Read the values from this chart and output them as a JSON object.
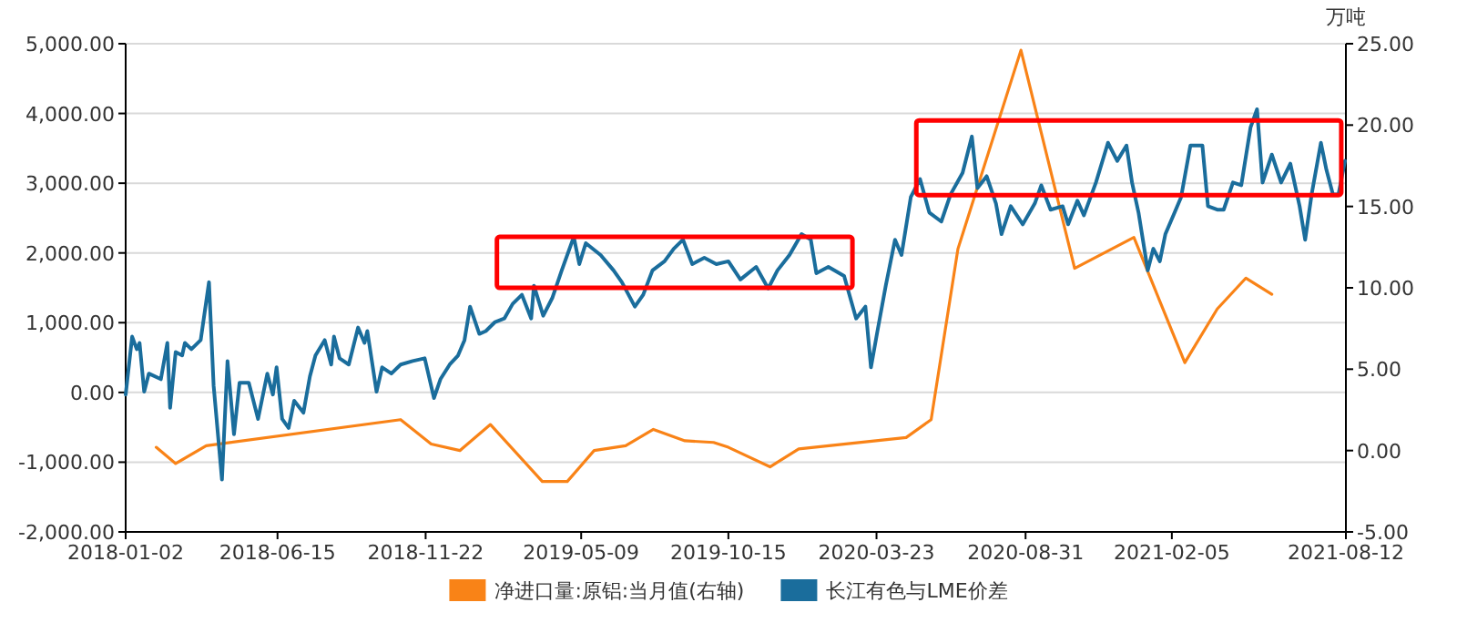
{
  "chart_data": {
    "type": "line",
    "y2label": "万吨",
    "grid": "y",
    "legend": "bottom",
    "xlim": [
      "2018-01-02",
      "2021-08-12"
    ],
    "xticks": [
      "2018-01-02",
      "2018-06-15",
      "2018-11-22",
      "2019-05-09",
      "2019-10-15",
      "2020-03-23",
      "2020-08-31",
      "2021-02-05",
      "2021-08-12"
    ],
    "ylim": [
      -2000,
      5000
    ],
    "yticks": [
      {
        "value": -2000,
        "label": "-2,000.00"
      },
      {
        "value": -1000,
        "label": "-1,000.00"
      },
      {
        "value": 0,
        "label": "0.00"
      },
      {
        "value": 1000,
        "label": "1,000.00"
      },
      {
        "value": 2000,
        "label": "2,000.00"
      },
      {
        "value": 3000,
        "label": "3,000.00"
      },
      {
        "value": 4000,
        "label": "4,000.00"
      },
      {
        "value": 5000,
        "label": "5,000.00"
      }
    ],
    "y2lim": [
      -5,
      25
    ],
    "y2ticks": [
      {
        "value": -5,
        "label": "-5.00"
      },
      {
        "value": 0,
        "label": "0.00"
      },
      {
        "value": 5,
        "label": "5.00"
      },
      {
        "value": 10,
        "label": "10.00"
      },
      {
        "value": 15,
        "label": "15.00"
      },
      {
        "value": 20,
        "label": "20.00"
      },
      {
        "value": 25,
        "label": "25.00"
      }
    ],
    "series": [
      {
        "name": "净进口量:原铝:当月值(右轴)",
        "color": "#f98317",
        "axis": "y2",
        "x": [
          "2018-02-04",
          "2018-02-25",
          "2018-03-30",
          "2018-10-26",
          "2018-11-28",
          "2018-12-29",
          "2019-01-31",
          "2019-03-28",
          "2019-04-24",
          "2019-05-23",
          "2019-06-26",
          "2019-07-26",
          "2019-08-29",
          "2019-09-29",
          "2019-10-15",
          "2019-11-29",
          "2019-12-30",
          "2020-04-24",
          "2020-05-21",
          "2020-06-19",
          "2020-08-26",
          "2020-10-23",
          "2020-12-26",
          "2021-02-19",
          "2021-03-26",
          "2021-04-26",
          "2021-05-24"
        ],
        "values": [
          0.2,
          -0.8,
          0.3,
          1.9,
          0.4,
          0.0,
          1.6,
          -1.9,
          -1.9,
          0.0,
          0.3,
          1.3,
          0.6,
          0.5,
          0.2,
          -1.0,
          0.1,
          0.8,
          1.9,
          12.4,
          24.6,
          11.2,
          13.1,
          5.4,
          8.7,
          10.6,
          9.6
        ]
      },
      {
        "name": "长江有色与LME价差",
        "color": "#1a6d9c",
        "x": [
          "2018-01-02",
          "2018-01-09",
          "2018-01-14",
          "2018-01-17",
          "2018-01-22",
          "2018-01-27",
          "2018-02-09",
          "2018-02-16",
          "2018-02-19",
          "2018-02-25",
          "2018-03-04",
          "2018-03-07",
          "2018-03-14",
          "2018-03-24",
          "2018-04-02",
          "2018-04-07",
          "2018-04-16",
          "2018-04-22",
          "2018-04-29",
          "2018-05-05",
          "2018-05-15",
          "2018-05-25",
          "2018-06-04",
          "2018-06-10",
          "2018-06-14",
          "2018-06-20",
          "2018-06-27",
          "2018-07-03",
          "2018-07-13",
          "2018-07-20",
          "2018-07-26",
          "2018-08-05",
          "2018-08-12",
          "2018-08-15",
          "2018-08-21",
          "2018-08-31",
          "2018-09-10",
          "2018-09-17",
          "2018-09-20",
          "2018-09-30",
          "2018-10-06",
          "2018-10-16",
          "2018-10-26",
          "2018-11-08",
          "2018-11-21",
          "2018-12-01",
          "2018-12-08",
          "2018-12-18",
          "2018-12-27",
          "2019-01-03",
          "2019-01-09",
          "2019-01-19",
          "2019-01-26",
          "2019-02-05",
          "2019-02-15",
          "2019-02-24",
          "2019-03-06",
          "2019-03-16",
          "2019-03-19",
          "2019-03-29",
          "2019-04-08",
          "2019-04-18",
          "2019-05-01",
          "2019-05-07",
          "2019-05-14",
          "2019-05-30",
          "2019-06-13",
          "2019-06-22",
          "2019-07-06",
          "2019-07-15",
          "2019-07-25",
          "2019-08-07",
          "2019-08-17",
          "2019-08-27",
          "2019-09-06",
          "2019-09-19",
          "2019-10-02",
          "2019-10-15",
          "2019-10-28",
          "2019-11-14",
          "2019-11-27",
          "2019-12-07",
          "2019-12-20",
          "2020-01-02",
          "2020-01-12",
          "2020-01-18",
          "2020-01-31",
          "2020-02-17",
          "2020-03-01",
          "2020-03-11",
          "2020-03-17",
          "2020-03-24",
          "2020-04-02",
          "2020-04-12",
          "2020-04-19",
          "2020-04-29",
          "2020-05-09",
          "2020-05-19",
          "2020-06-01",
          "2020-06-11",
          "2020-06-24",
          "2020-07-04",
          "2020-07-10",
          "2020-07-20",
          "2020-07-30",
          "2020-08-05",
          "2020-08-15",
          "2020-08-28",
          "2020-09-10",
          "2020-09-17",
          "2020-09-27",
          "2020-10-10",
          "2020-10-16",
          "2020-10-26",
          "2020-11-02",
          "2020-11-15",
          "2020-11-28",
          "2020-12-08",
          "2020-12-18",
          "2020-12-24",
          "2020-12-31",
          "2021-01-10",
          "2021-01-16",
          "2021-01-23",
          "2021-01-29",
          "2021-02-08",
          "2021-02-15",
          "2021-02-25",
          "2021-03-10",
          "2021-03-16",
          "2021-03-26",
          "2021-04-02",
          "2021-04-12",
          "2021-04-21",
          "2021-05-01",
          "2021-05-08",
          "2021-05-14",
          "2021-05-24",
          "2021-06-03",
          "2021-06-13",
          "2021-06-23",
          "2021-06-29",
          "2021-07-06",
          "2021-07-16",
          "2021-07-22",
          "2021-07-29",
          "2021-08-04",
          "2021-08-11"
        ],
        "values": [
          -30,
          800,
          620,
          710,
          10,
          270,
          190,
          710,
          -220,
          580,
          530,
          710,
          620,
          750,
          1580,
          100,
          -1250,
          450,
          -600,
          140,
          140,
          -380,
          270,
          -30,
          360,
          -380,
          -510,
          -120,
          -290,
          230,
          530,
          750,
          400,
          800,
          490,
          400,
          930,
          710,
          880,
          10,
          360,
          270,
          400,
          450,
          490,
          -80,
          190,
          400,
          530,
          750,
          1230,
          840,
          880,
          1010,
          1060,
          1270,
          1400,
          1060,
          1530,
          1100,
          1360,
          1750,
          2230,
          1840,
          2140,
          1970,
          1750,
          1580,
          1230,
          1400,
          1750,
          1880,
          2060,
          2190,
          1840,
          1930,
          1840,
          1880,
          1620,
          1800,
          1490,
          1750,
          1970,
          2270,
          2190,
          1710,
          1800,
          1670,
          1060,
          1230,
          360,
          880,
          1530,
          2190,
          1970,
          2800,
          3060,
          2580,
          2450,
          2840,
          3150,
          3670,
          2930,
          3100,
          2710,
          2270,
          2670,
          2410,
          2710,
          2970,
          2620,
          2670,
          2410,
          2750,
          2540,
          3010,
          3580,
          3320,
          3540,
          3010,
          2580,
          1750,
          2060,
          1880,
          2270,
          2580,
          2800,
          3540,
          3540,
          2670,
          2620,
          2620,
          3010,
          2970,
          3800,
          4060,
          3010,
          3410,
          3010,
          3280,
          2670,
          2190,
          2840,
          3580,
          3190,
          2840,
          2840,
          3320
        ]
      }
    ]
  }
}
